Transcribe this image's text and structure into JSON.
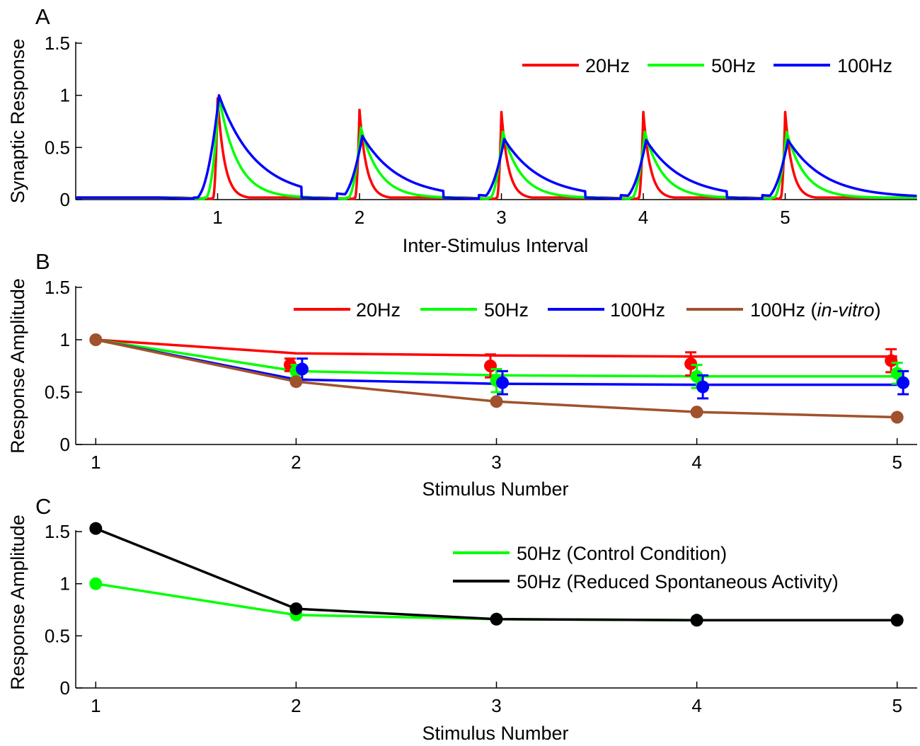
{
  "chart_data": [
    {
      "panel": "A",
      "type": "line",
      "xlabel": "Inter-Stimulus Interval",
      "ylabel": "Synaptic Response",
      "xlim": [
        0,
        5.93
      ],
      "ylim": [
        0,
        1.5
      ],
      "xticks": [
        1,
        2,
        3,
        4,
        5
      ],
      "yticks": [
        0,
        0.5,
        1,
        1.5
      ],
      "ytick_labels": [
        "0",
        "0.5",
        "1",
        "1.5"
      ],
      "legend_position": "top-right",
      "colors": {
        "20Hz": "#ff0000",
        "50Hz": "#00ff00",
        "100Hz": "#0000ff"
      },
      "series": [
        {
          "name": "20Hz",
          "color": "#ff0000",
          "peaks": [
            0.97,
            0.86,
            0.84,
            0.84,
            0.84
          ],
          "peak_times": [
            1.0,
            2.0,
            3.0,
            4.0,
            5.0
          ]
        },
        {
          "name": "50Hz",
          "color": "#00ff00",
          "peaks": [
            0.99,
            0.69,
            0.65,
            0.65,
            0.65
          ],
          "peak_times": [
            1.01,
            2.01,
            3.01,
            4.01,
            5.01
          ]
        },
        {
          "name": "100Hz",
          "color": "#0000ff",
          "peaks": [
            1.0,
            0.61,
            0.58,
            0.57,
            0.57
          ],
          "peak_times": [
            1.01,
            2.02,
            3.02,
            4.02,
            5.02
          ]
        }
      ],
      "baseline": 0.02
    },
    {
      "panel": "B",
      "type": "line",
      "xlabel": "Stimulus Number",
      "ylabel": "Response Amplitude",
      "xlim": [
        0.9,
        5.1
      ],
      "ylim": [
        0,
        1.5
      ],
      "categories": [
        1,
        2,
        3,
        4,
        5
      ],
      "xticks": [
        1,
        2,
        3,
        4,
        5
      ],
      "yticks": [
        0,
        0.5,
        1,
        1.5
      ],
      "ytick_labels": [
        "0",
        "0.5",
        "1",
        "1.5"
      ],
      "legend_position": "top-right",
      "series": [
        {
          "name": "20Hz",
          "color": "#ff0000",
          "model": [
            1.0,
            0.87,
            0.85,
            0.84,
            0.84
          ],
          "points": [
            [
              1.97,
              0.76
            ],
            [
              2.97,
              0.75
            ],
            [
              3.97,
              0.77
            ],
            [
              4.97,
              0.8
            ]
          ],
          "errors": [
            0.06,
            0.11,
            0.11,
            0.11
          ]
        },
        {
          "name": "50Hz",
          "color": "#00ff00",
          "model": [
            1.0,
            0.7,
            0.66,
            0.65,
            0.65
          ],
          "points": [
            [
              2.0,
              0.7
            ],
            [
              3.0,
              0.61
            ],
            [
              4.0,
              0.65
            ],
            [
              5.0,
              0.68
            ]
          ],
          "errors": [
            0.06,
            0.11,
            0.11,
            0.1
          ]
        },
        {
          "name": "100Hz",
          "color": "#0000ff",
          "model": [
            1.0,
            0.62,
            0.58,
            0.57,
            0.57
          ],
          "points": [
            [
              2.03,
              0.72
            ],
            [
              3.03,
              0.59
            ],
            [
              4.03,
              0.55
            ],
            [
              5.03,
              0.59
            ]
          ],
          "errors": [
            0.1,
            0.11,
            0.11,
            0.11
          ]
        },
        {
          "name": "100Hz",
          "name_suffix": "in-vitro",
          "color": "#a0522d",
          "model": [
            1.0,
            0.6,
            0.41,
            0.31,
            0.26
          ],
          "markers": true
        }
      ]
    },
    {
      "panel": "C",
      "type": "line",
      "xlabel": "Stimulus Number",
      "ylabel": "Response Amplitude",
      "xlim": [
        0.9,
        5.1
      ],
      "ylim": [
        0,
        1.65
      ],
      "categories": [
        1,
        2,
        3,
        4,
        5
      ],
      "xticks": [
        1,
        2,
        3,
        4,
        5
      ],
      "yticks": [
        0,
        0.5,
        1,
        1.5
      ],
      "ytick_labels": [
        "0",
        "0.5",
        "1",
        "1.5"
      ],
      "legend_position": "top-right",
      "series": [
        {
          "name": "50Hz (Control Condition)",
          "color": "#00ff00",
          "values": [
            1.0,
            0.7,
            0.66,
            0.65,
            0.65
          ]
        },
        {
          "name": "50Hz (Reduced Spontaneous Activity)",
          "color": "#000000",
          "values": [
            1.53,
            0.76,
            0.66,
            0.65,
            0.65
          ]
        }
      ]
    }
  ]
}
